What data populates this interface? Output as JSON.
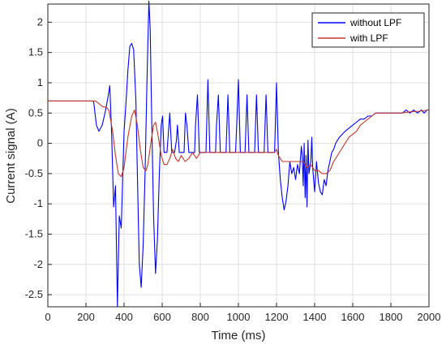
{
  "chart_data": {
    "type": "line",
    "xlabel": "Time (ms)",
    "ylabel": "Current signal (A)",
    "xlim": [
      0,
      2000
    ],
    "ylim": [
      -2.7,
      2.3
    ],
    "x_ticks": [
      0,
      200,
      400,
      600,
      800,
      1000,
      1200,
      1400,
      1600,
      1800,
      2000
    ],
    "y_ticks": [
      -2.5,
      -2,
      -1.5,
      -1,
      -0.5,
      0,
      0.5,
      1,
      1.5,
      2
    ],
    "grid": true,
    "legend_position": "top-right",
    "series": [
      {
        "name": "without LPF",
        "color": "#0000ff",
        "points": [
          [
            0,
            0.7
          ],
          [
            240,
            0.7
          ],
          [
            255,
            0.3
          ],
          [
            268,
            0.2
          ],
          [
            285,
            0.3
          ],
          [
            300,
            0.5
          ],
          [
            315,
            0.75
          ],
          [
            325,
            0.95
          ],
          [
            335,
            0.15
          ],
          [
            345,
            -1.05
          ],
          [
            355,
            -0.7
          ],
          [
            365,
            -2.7
          ],
          [
            375,
            -1.2
          ],
          [
            385,
            -1.4
          ],
          [
            400,
            0.2
          ],
          [
            410,
            0.65
          ],
          [
            420,
            1.2
          ],
          [
            430,
            1.6
          ],
          [
            440,
            1.65
          ],
          [
            450,
            1.55
          ],
          [
            462,
            0.7
          ],
          [
            470,
            -0.5
          ],
          [
            480,
            -2.0
          ],
          [
            490,
            -2.38
          ],
          [
            500,
            -1.7
          ],
          [
            510,
            -0.5
          ],
          [
            520,
            1.0
          ],
          [
            530,
            2.35
          ],
          [
            537,
            1.9
          ],
          [
            545,
            0.4
          ],
          [
            555,
            -1.2
          ],
          [
            565,
            -2.15
          ],
          [
            575,
            -1.6
          ],
          [
            585,
            -0.5
          ],
          [
            595,
            0.3
          ],
          [
            602,
            0.45
          ],
          [
            610,
            -0.15
          ],
          [
            625,
            -0.15
          ],
          [
            640,
            0.5
          ],
          [
            650,
            -0.15
          ],
          [
            665,
            -0.15
          ],
          [
            675,
            0.05
          ],
          [
            680,
            0.3
          ],
          [
            690,
            -0.15
          ],
          [
            715,
            -0.15
          ],
          [
            722,
            0.5
          ],
          [
            730,
            0.3
          ],
          [
            740,
            -0.15
          ],
          [
            770,
            -0.15
          ],
          [
            775,
            0.3
          ],
          [
            785,
            0.8
          ],
          [
            795,
            -0.15
          ],
          [
            830,
            -0.15
          ],
          [
            840,
            1.05
          ],
          [
            850,
            -0.15
          ],
          [
            880,
            -0.15
          ],
          [
            885,
            0.3
          ],
          [
            895,
            0.8
          ],
          [
            905,
            -0.15
          ],
          [
            935,
            -0.15
          ],
          [
            945,
            0.8
          ],
          [
            955,
            -0.15
          ],
          [
            985,
            -0.15
          ],
          [
            990,
            0.2
          ],
          [
            1000,
            1.05
          ],
          [
            1010,
            -0.15
          ],
          [
            1035,
            -0.15
          ],
          [
            1045,
            0.8
          ],
          [
            1055,
            -0.15
          ],
          [
            1085,
            -0.15
          ],
          [
            1095,
            0.8
          ],
          [
            1105,
            -0.15
          ],
          [
            1135,
            -0.15
          ],
          [
            1145,
            0.8
          ],
          [
            1155,
            -0.15
          ],
          [
            1190,
            -0.15
          ],
          [
            1200,
            1.0
          ],
          [
            1210,
            -0.15
          ],
          [
            1220,
            -0.6
          ],
          [
            1230,
            -0.9
          ],
          [
            1240,
            -1.1
          ],
          [
            1250,
            -0.95
          ],
          [
            1260,
            -0.7
          ],
          [
            1270,
            -0.3
          ],
          [
            1280,
            -0.5
          ],
          [
            1290,
            -0.4
          ],
          [
            1300,
            -0.6
          ],
          [
            1310,
            -0.35
          ],
          [
            1320,
            -0.5
          ],
          [
            1330,
            -0.05
          ],
          [
            1335,
            -0.2
          ],
          [
            1340,
            -0.7
          ],
          [
            1345,
            0.0
          ],
          [
            1350,
            -0.9
          ],
          [
            1355,
            -0.2
          ],
          [
            1360,
            -1.05
          ],
          [
            1365,
            0.05
          ],
          [
            1370,
            -0.5
          ],
          [
            1380,
            -0.3
          ],
          [
            1385,
            0.1
          ],
          [
            1390,
            -0.4
          ],
          [
            1400,
            -0.8
          ],
          [
            1410,
            -0.3
          ],
          [
            1420,
            -0.65
          ],
          [
            1430,
            -0.8
          ],
          [
            1440,
            -0.85
          ],
          [
            1450,
            -0.6
          ],
          [
            1460,
            -0.7
          ],
          [
            1470,
            -0.45
          ],
          [
            1480,
            -0.3
          ],
          [
            1490,
            -0.15
          ],
          [
            1500,
            -0.1
          ],
          [
            1510,
            0.0
          ],
          [
            1520,
            0.05
          ],
          [
            1530,
            0.1
          ],
          [
            1545,
            0.15
          ],
          [
            1560,
            0.2
          ],
          [
            1580,
            0.25
          ],
          [
            1600,
            0.3
          ],
          [
            1620,
            0.35
          ],
          [
            1640,
            0.4
          ],
          [
            1660,
            0.4
          ],
          [
            1680,
            0.45
          ],
          [
            1700,
            0.45
          ],
          [
            1720,
            0.5
          ],
          [
            1750,
            0.5
          ],
          [
            1800,
            0.5
          ],
          [
            1860,
            0.5
          ],
          [
            1880,
            0.55
          ],
          [
            1900,
            0.5
          ],
          [
            1920,
            0.55
          ],
          [
            1940,
            0.5
          ],
          [
            1960,
            0.55
          ],
          [
            1975,
            0.5
          ],
          [
            1990,
            0.55
          ],
          [
            2000,
            0.55
          ]
        ]
      },
      {
        "name": "with LPF",
        "color": "#c0392b",
        "points": [
          [
            0,
            0.7
          ],
          [
            250,
            0.7
          ],
          [
            270,
            0.65
          ],
          [
            290,
            0.6
          ],
          [
            305,
            0.6
          ],
          [
            320,
            0.55
          ],
          [
            340,
            0.2
          ],
          [
            355,
            -0.2
          ],
          [
            370,
            -0.5
          ],
          [
            385,
            -0.55
          ],
          [
            400,
            -0.4
          ],
          [
            420,
            0.1
          ],
          [
            440,
            0.45
          ],
          [
            455,
            0.55
          ],
          [
            470,
            0.3
          ],
          [
            485,
            -0.1
          ],
          [
            500,
            -0.4
          ],
          [
            515,
            -0.45
          ],
          [
            525,
            -0.35
          ],
          [
            540,
            0.0
          ],
          [
            555,
            0.3
          ],
          [
            565,
            0.35
          ],
          [
            580,
            0.1
          ],
          [
            595,
            -0.2
          ],
          [
            610,
            -0.35
          ],
          [
            625,
            -0.35
          ],
          [
            640,
            -0.25
          ],
          [
            655,
            -0.1
          ],
          [
            670,
            -0.25
          ],
          [
            685,
            -0.3
          ],
          [
            700,
            -0.2
          ],
          [
            720,
            -0.3
          ],
          [
            740,
            -0.25
          ],
          [
            760,
            -0.15
          ],
          [
            780,
            -0.25
          ],
          [
            800,
            -0.15
          ],
          [
            830,
            -0.15
          ],
          [
            850,
            -0.15
          ],
          [
            880,
            -0.15
          ],
          [
            920,
            -0.15
          ],
          [
            960,
            -0.15
          ],
          [
            1000,
            -0.15
          ],
          [
            1040,
            -0.15
          ],
          [
            1080,
            -0.15
          ],
          [
            1120,
            -0.15
          ],
          [
            1160,
            -0.15
          ],
          [
            1190,
            -0.15
          ],
          [
            1200,
            -0.1
          ],
          [
            1210,
            -0.2
          ],
          [
            1230,
            -0.3
          ],
          [
            1250,
            -0.3
          ],
          [
            1280,
            -0.3
          ],
          [
            1310,
            -0.3
          ],
          [
            1340,
            -0.3
          ],
          [
            1360,
            -0.4
          ],
          [
            1380,
            -0.35
          ],
          [
            1400,
            -0.45
          ],
          [
            1420,
            -0.45
          ],
          [
            1440,
            -0.5
          ],
          [
            1460,
            -0.5
          ],
          [
            1480,
            -0.45
          ],
          [
            1500,
            -0.3
          ],
          [
            1520,
            -0.2
          ],
          [
            1540,
            -0.1
          ],
          [
            1560,
            0.0
          ],
          [
            1580,
            0.1
          ],
          [
            1600,
            0.15
          ],
          [
            1620,
            0.2
          ],
          [
            1640,
            0.3
          ],
          [
            1660,
            0.35
          ],
          [
            1680,
            0.4
          ],
          [
            1700,
            0.45
          ],
          [
            1720,
            0.5
          ],
          [
            1750,
            0.5
          ],
          [
            1800,
            0.5
          ],
          [
            1850,
            0.5
          ],
          [
            1900,
            0.52
          ],
          [
            1950,
            0.53
          ],
          [
            2000,
            0.55
          ]
        ]
      }
    ]
  }
}
